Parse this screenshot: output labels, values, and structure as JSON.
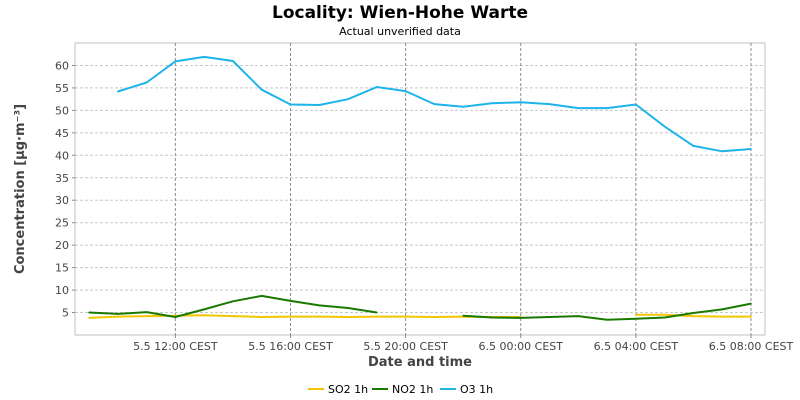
{
  "chart_data": {
    "type": "line",
    "title": "Locality: Wien-Hohe  Warte",
    "subtitle": "Actual unverified data",
    "xlabel": "Date and time",
    "ylabel": "Concentration [µg·m⁻³]",
    "ylim": [
      0,
      65
    ],
    "yticks": [
      "5",
      "10",
      "15",
      "20",
      "25",
      "30",
      "35",
      "40",
      "45",
      "50",
      "55",
      "60"
    ],
    "ytick_values": [
      5,
      10,
      15,
      20,
      25,
      30,
      35,
      40,
      45,
      50,
      55,
      60
    ],
    "xlim": [
      "2024-05-05 09:00",
      "2024-05-06 08:00"
    ],
    "xticks": [
      "5.5 12:00 CEST",
      "5.5 16:00 CEST",
      "5.5 20:00 CEST",
      "6.5 00:00 CEST",
      "6.5 04:00 CEST",
      "6.5 08:00 CEST"
    ],
    "xtick_times": [
      "2024-05-05 12:00",
      "2024-05-05 16:00",
      "2024-05-05 20:00",
      "2024-05-06 00:00",
      "2024-05-06 04:00",
      "2024-05-06 08:00"
    ],
    "grid": true,
    "legend_position": "bottom",
    "x": [
      "2024-05-05 09:00",
      "2024-05-05 10:00",
      "2024-05-05 11:00",
      "2024-05-05 12:00",
      "2024-05-05 13:00",
      "2024-05-05 14:00",
      "2024-05-05 15:00",
      "2024-05-05 16:00",
      "2024-05-05 17:00",
      "2024-05-05 18:00",
      "2024-05-05 19:00",
      "2024-05-05 20:00",
      "2024-05-05 21:00",
      "2024-05-05 22:00",
      "2024-05-05 23:00",
      "2024-05-06 00:00",
      "2024-05-06 01:00",
      "2024-05-06 02:00",
      "2024-05-06 03:00",
      "2024-05-06 04:00",
      "2024-05-06 05:00",
      "2024-05-06 06:00",
      "2024-05-06 07:00",
      "2024-05-06 08:00"
    ],
    "series": [
      {
        "name": "SO2 1h",
        "color": "#f2c600",
        "values": [
          3.8,
          4.1,
          4.2,
          4.3,
          4.4,
          4.2,
          4.0,
          4.1,
          4.1,
          4.0,
          4.1,
          4.1,
          4.0,
          4.1,
          4.0,
          4.0,
          null,
          null,
          null,
          4.5,
          4.5,
          4.2,
          4.1,
          4.1
        ]
      },
      {
        "name": "NO2 1h",
        "color": "#1a7a00",
        "values": [
          5.0,
          4.7,
          5.1,
          4.0,
          5.7,
          7.5,
          8.7,
          7.6,
          6.6,
          6.0,
          5.0,
          null,
          null,
          4.3,
          3.9,
          3.8,
          4.0,
          4.2,
          3.4,
          3.6,
          3.9,
          4.9,
          5.7,
          7.0
        ]
      },
      {
        "name": "O3 1h",
        "color": "#1eb4ea",
        "values": [
          null,
          54.2,
          56.2,
          60.9,
          61.9,
          61.0,
          54.6,
          51.3,
          51.2,
          52.5,
          55.2,
          54.3,
          51.4,
          50.8,
          51.6,
          51.8,
          51.4,
          50.5,
          50.5,
          51.3,
          46.4,
          42.1,
          40.9,
          41.4
        ]
      }
    ]
  }
}
